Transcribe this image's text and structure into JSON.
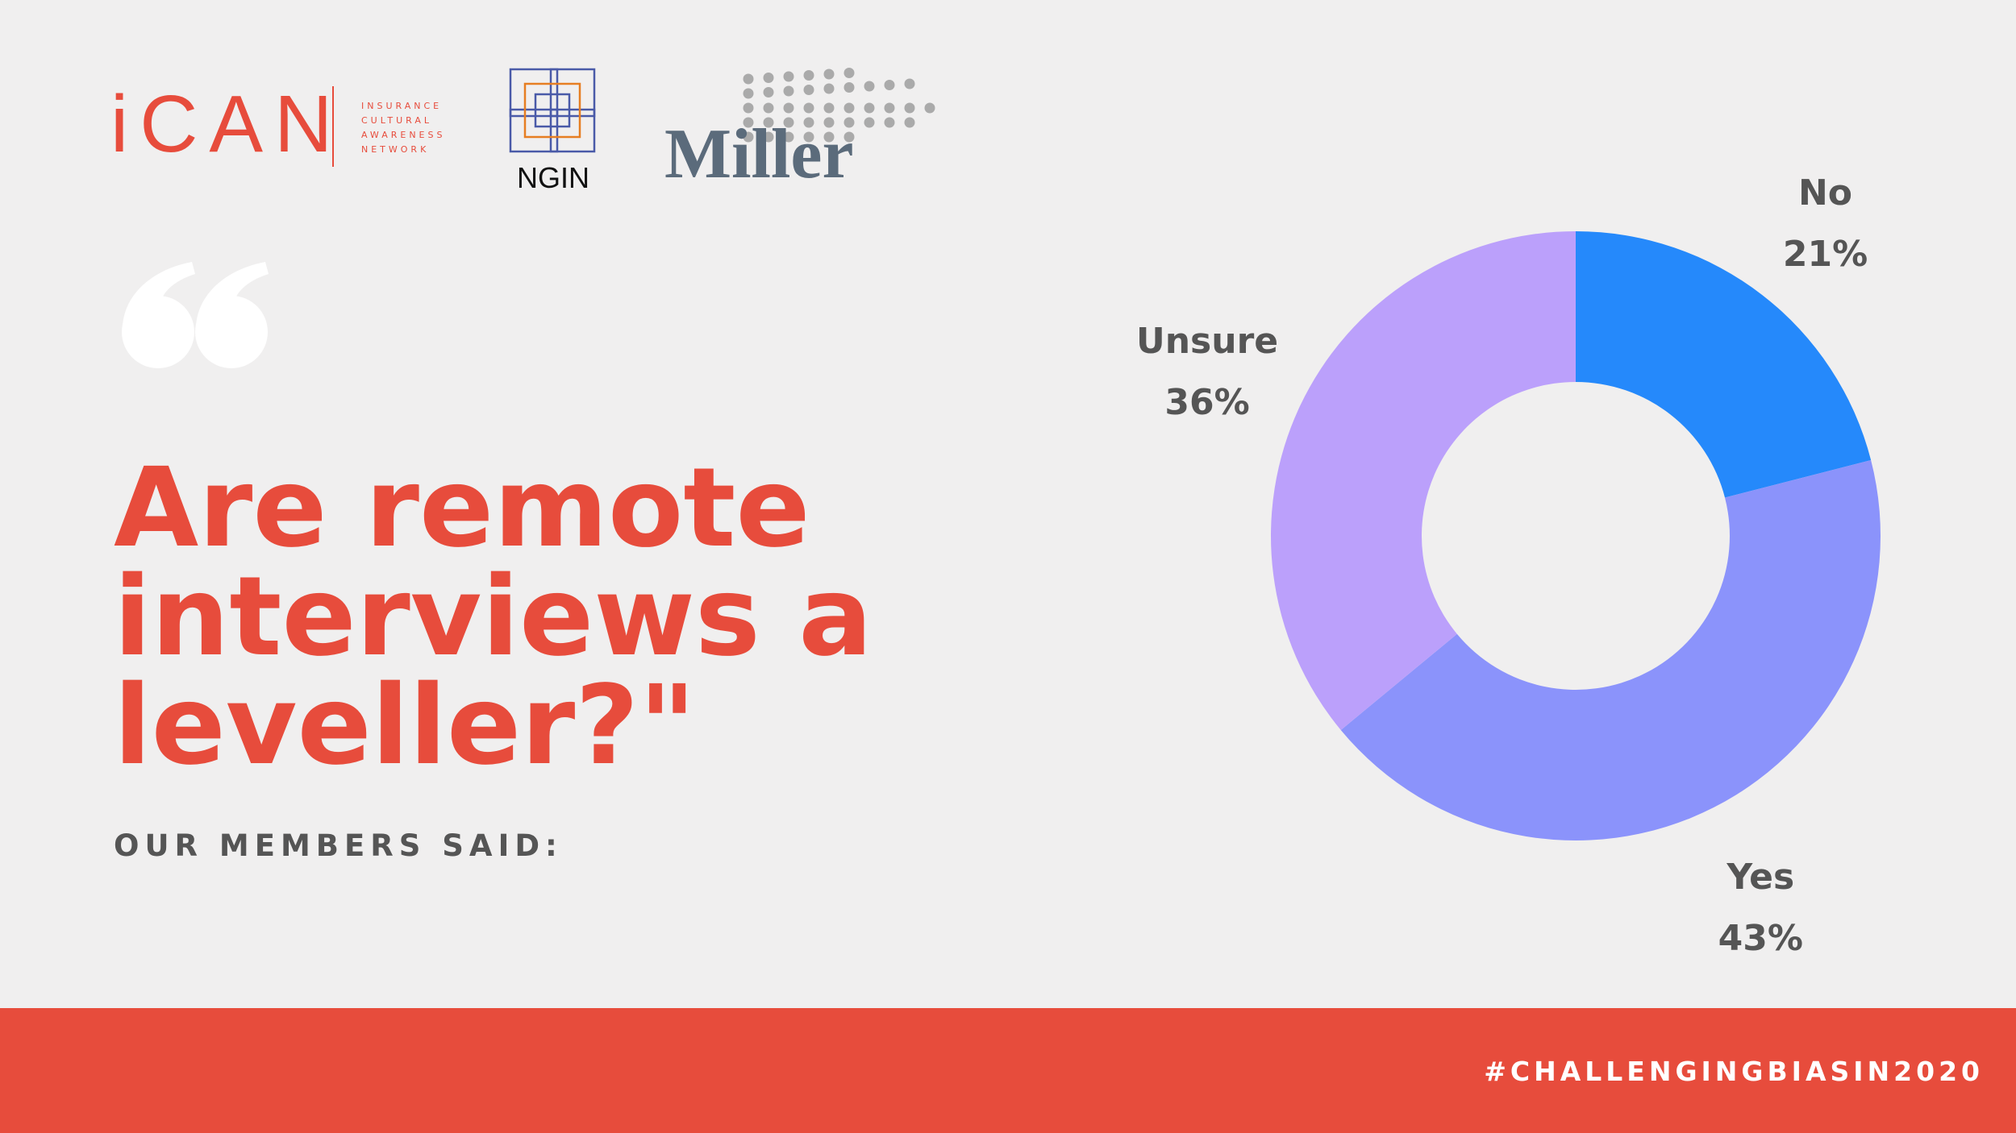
{
  "logos": {
    "ican": "iCAN",
    "ican_tagline": [
      "INSURANCE",
      "CULTURAL",
      "AWARENESS",
      "NETWORK"
    ],
    "ngin": "NGIN",
    "miller": "Miller"
  },
  "chart_data": {
    "type": "pie",
    "donut": true,
    "title_lines": [
      "Are remote",
      "interviews a",
      "leveller?\""
    ],
    "subtitle": "OUR MEMBERS SAID:",
    "footer": "#CHALLENGINGBIASIN2020",
    "categories": [
      "No",
      "Yes",
      "Unsure"
    ],
    "values": [
      21,
      43,
      36
    ],
    "value_labels": [
      "21%",
      "43%",
      "36%"
    ],
    "colors": [
      "#2589fb",
      "#8b93fb",
      "#bba0fb"
    ]
  }
}
